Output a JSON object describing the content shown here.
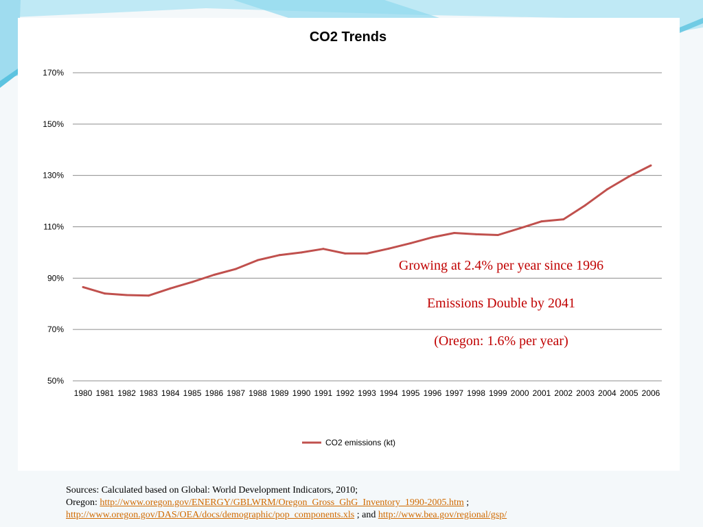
{
  "chart_data": {
    "type": "line",
    "title": "CO2 Trends",
    "xlabel": "",
    "ylabel": "",
    "ylim": [
      50,
      170
    ],
    "yticks": [
      "170%",
      "150%",
      "130%",
      "110%",
      "90%",
      "70%",
      "50%"
    ],
    "ytick_values": [
      170,
      150,
      130,
      110,
      90,
      70,
      50
    ],
    "grid": "horizontal",
    "legend_position": "bottom",
    "categories": [
      "1980",
      "1981",
      "1982",
      "1983",
      "1984",
      "1985",
      "1986",
      "1987",
      "1988",
      "1989",
      "1990",
      "1991",
      "1992",
      "1993",
      "1994",
      "1995",
      "1996",
      "1997",
      "1998",
      "1999",
      "2000",
      "2001",
      "2002",
      "2003",
      "2004",
      "2005",
      "2006"
    ],
    "series": [
      {
        "name": "CO2 emissions (kt)",
        "color": "#c0504d",
        "values": [
          86.5,
          84,
          83.4,
          83.2,
          86,
          88.5,
          91.3,
          93.6,
          97,
          99,
          100,
          101.4,
          99.6,
          99.6,
          101.5,
          103.6,
          105.9,
          107.6,
          107.1,
          106.8,
          109.4,
          112.1,
          112.9,
          118.4,
          124.6,
          129.6,
          133.9
        ]
      }
    ],
    "annotations": [
      "Growing at 2.4% per year since 1996",
      "Emissions Double by 2041",
      "(Oregon: 1.6% per year)"
    ]
  },
  "sources": {
    "line1": "Sources: Calculated based on Global: World Development Indicators, 2010;",
    "oregon_prefix": "Oregon: ",
    "link1": "http://www.oregon.gov/ENERGY/GBLWRM/Oregon_Gross_GhG_Inventory_1990-2005.htm",
    "sep1": " ;",
    "link2": "http://www.oregon.gov/DAS/OEA/docs/demographic/pop_components.xls",
    "sep2": " ; and ",
    "link3": "http://www.bea.gov/regional/gsp/"
  },
  "theme": {
    "accent_light": "#bfe9f5",
    "accent_mid": "#5cc3e0",
    "line_color": "#c0504d",
    "annotation_color": "#c00000",
    "link_color": "#d06a00"
  }
}
